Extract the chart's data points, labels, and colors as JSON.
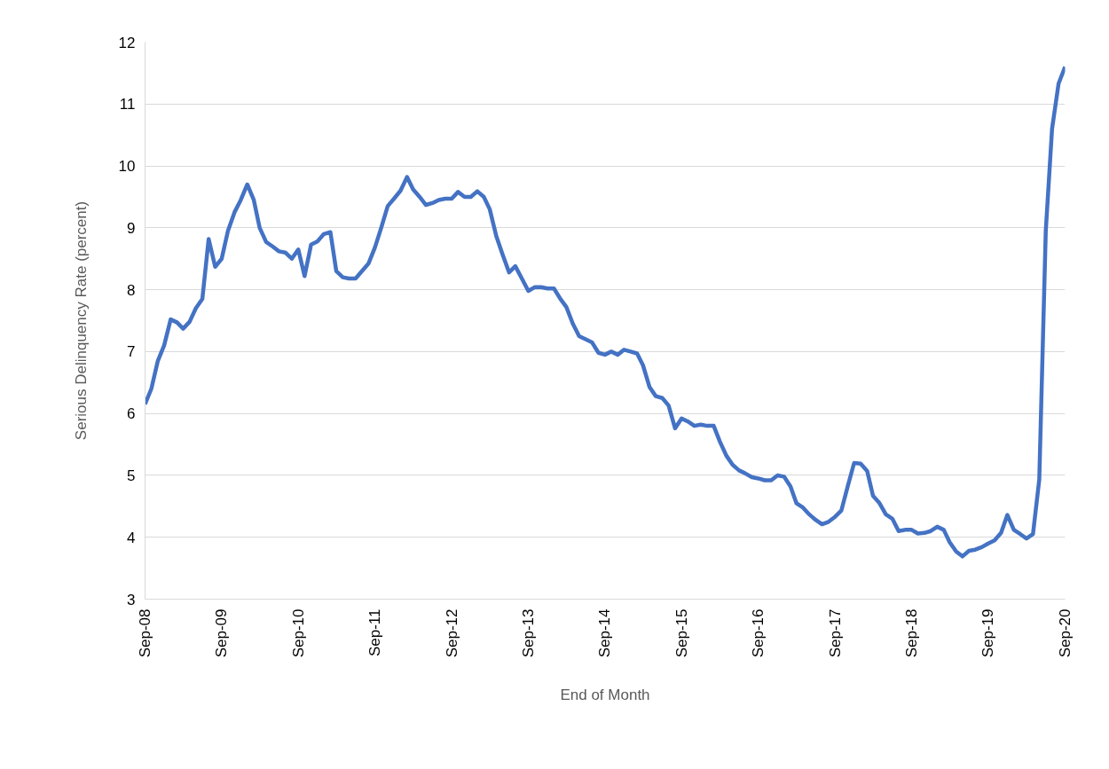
{
  "chart_data": {
    "type": "line",
    "xlabel": "End of Month",
    "ylabel": "Serious Delinquency Rate (percent)",
    "x": [
      "2008-09",
      "2008-10",
      "2008-11",
      "2008-12",
      "2009-01",
      "2009-02",
      "2009-03",
      "2009-04",
      "2009-05",
      "2009-06",
      "2009-07",
      "2009-08",
      "2009-09",
      "2009-10",
      "2009-11",
      "2009-12",
      "2010-01",
      "2010-02",
      "2010-03",
      "2010-04",
      "2010-05",
      "2010-06",
      "2010-07",
      "2010-08",
      "2010-09",
      "2010-10",
      "2010-11",
      "2010-12",
      "2011-01",
      "2011-02",
      "2011-03",
      "2011-04",
      "2011-05",
      "2011-06",
      "2011-07",
      "2011-08",
      "2011-09",
      "2011-10",
      "2011-11",
      "2011-12",
      "2012-01",
      "2012-02",
      "2012-03",
      "2012-04",
      "2012-05",
      "2012-06",
      "2012-07",
      "2012-08",
      "2012-09",
      "2012-10",
      "2012-11",
      "2012-12",
      "2013-01",
      "2013-02",
      "2013-03",
      "2013-04",
      "2013-05",
      "2013-06",
      "2013-07",
      "2013-08",
      "2013-09",
      "2013-10",
      "2013-11",
      "2013-12",
      "2014-01",
      "2014-02",
      "2014-03",
      "2014-04",
      "2014-05",
      "2014-06",
      "2014-07",
      "2014-08",
      "2014-09",
      "2014-10",
      "2014-11",
      "2014-12",
      "2015-01",
      "2015-02",
      "2015-03",
      "2015-04",
      "2015-05",
      "2015-06",
      "2015-07",
      "2015-08",
      "2015-09",
      "2015-10",
      "2015-11",
      "2015-12",
      "2016-01",
      "2016-02",
      "2016-03",
      "2016-04",
      "2016-05",
      "2016-06",
      "2016-07",
      "2016-08",
      "2016-09",
      "2016-10",
      "2016-11",
      "2016-12",
      "2017-01",
      "2017-02",
      "2017-03",
      "2017-04",
      "2017-05",
      "2017-06",
      "2017-07",
      "2017-08",
      "2017-09",
      "2017-10",
      "2017-11",
      "2017-12",
      "2018-01",
      "2018-02",
      "2018-03",
      "2018-04",
      "2018-05",
      "2018-06",
      "2018-07",
      "2018-08",
      "2018-09",
      "2018-10",
      "2018-11",
      "2018-12",
      "2019-01",
      "2019-02",
      "2019-03",
      "2019-04",
      "2019-05",
      "2019-06",
      "2019-07",
      "2019-08",
      "2019-09",
      "2019-10",
      "2019-11",
      "2019-12",
      "2020-01",
      "2020-02",
      "2020-03",
      "2020-04",
      "2020-05",
      "2020-06",
      "2020-07",
      "2020-08",
      "2020-09"
    ],
    "series": [
      {
        "color": "#4472c4",
        "values": [
          6.15,
          6.4,
          6.85,
          7.1,
          7.52,
          7.47,
          7.37,
          7.48,
          7.7,
          7.85,
          8.82,
          8.37,
          8.5,
          8.95,
          9.25,
          9.45,
          9.7,
          9.45,
          9.0,
          8.77,
          8.7,
          8.62,
          8.6,
          8.5,
          8.65,
          8.22,
          8.73,
          8.78,
          8.9,
          8.93,
          8.3,
          8.2,
          8.18,
          8.18,
          8.3,
          8.42,
          8.68,
          9.0,
          9.35,
          9.47,
          9.6,
          9.82,
          9.62,
          9.5,
          9.37,
          9.4,
          9.45,
          9.47,
          9.47,
          9.58,
          9.5,
          9.5,
          9.59,
          9.5,
          9.3,
          8.87,
          8.57,
          8.28,
          8.38,
          8.18,
          7.98,
          8.04,
          8.04,
          8.02,
          8.02,
          7.85,
          7.72,
          7.45,
          7.25,
          7.2,
          7.15,
          6.98,
          6.95,
          7.0,
          6.95,
          7.03,
          7.0,
          6.97,
          6.78,
          6.43,
          6.28,
          6.25,
          6.13,
          5.76,
          5.92,
          5.87,
          5.8,
          5.82,
          5.8,
          5.8,
          5.55,
          5.32,
          5.17,
          5.08,
          5.03,
          4.97,
          4.95,
          4.92,
          4.92,
          5.0,
          4.98,
          4.82,
          4.55,
          4.48,
          4.37,
          4.28,
          4.21,
          4.25,
          4.33,
          4.43,
          4.83,
          5.2,
          5.19,
          5.07,
          4.67,
          4.55,
          4.37,
          4.3,
          4.1,
          4.12,
          4.12,
          4.06,
          4.07,
          4.1,
          4.17,
          4.12,
          3.92,
          3.77,
          3.69,
          3.78,
          3.8,
          3.84,
          3.9,
          3.95,
          4.07,
          4.36,
          4.12,
          4.05,
          3.98,
          4.05,
          4.93,
          8.95,
          10.6,
          11.33,
          11.6
        ]
      }
    ],
    "xlim": [
      "2008-09",
      "2020-09"
    ],
    "xticks": [
      {
        "value": "2008-09",
        "label": "Sep-08"
      },
      {
        "value": "2009-09",
        "label": "Sep-09"
      },
      {
        "value": "2010-09",
        "label": "Sep-10"
      },
      {
        "value": "2011-09",
        "label": "Sep-11"
      },
      {
        "value": "2012-09",
        "label": "Sep-12"
      },
      {
        "value": "2013-09",
        "label": "Sep-13"
      },
      {
        "value": "2014-09",
        "label": "Sep-14"
      },
      {
        "value": "2015-09",
        "label": "Sep-15"
      },
      {
        "value": "2016-09",
        "label": "Sep-16"
      },
      {
        "value": "2017-09",
        "label": "Sep-17"
      },
      {
        "value": "2018-09",
        "label": "Sep-18"
      },
      {
        "value": "2019-09",
        "label": "Sep-19"
      },
      {
        "value": "2020-09",
        "label": "Sep-20"
      }
    ],
    "ylim": [
      3,
      12
    ],
    "yticks": [
      3,
      4,
      5,
      6,
      7,
      8,
      9,
      10,
      11,
      12
    ],
    "grid": "y",
    "marker": "none",
    "line_style": "solid"
  }
}
